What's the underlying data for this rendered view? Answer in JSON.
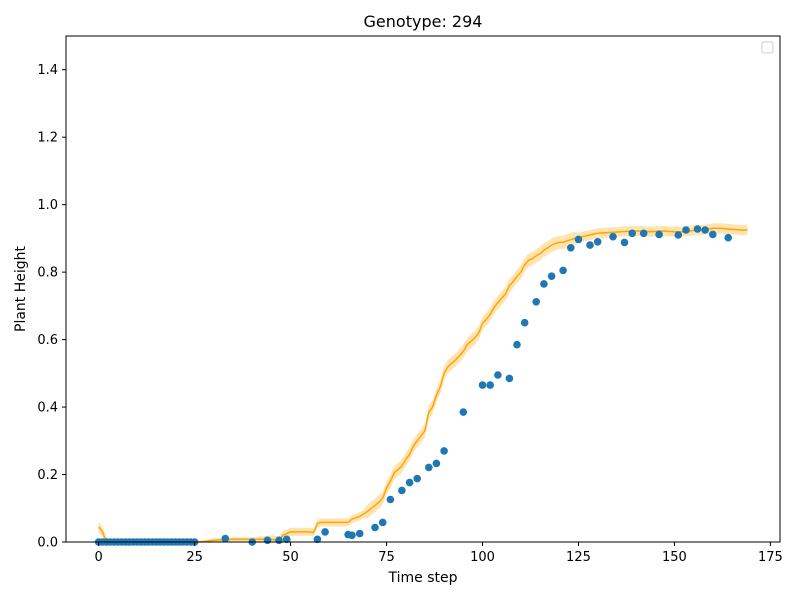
{
  "chart_data": {
    "type": "scatter",
    "title": "Genotype: 294",
    "xlabel": "Time step",
    "ylabel": "Plant Height",
    "xlim": [
      -8.5,
      177.5
    ],
    "ylim": [
      0,
      1.5
    ],
    "xticks": [
      0,
      25,
      50,
      75,
      100,
      125,
      150,
      175
    ],
    "xtick_labels": [
      "0",
      "25",
      "50",
      "75",
      "100",
      "125",
      "150",
      "175"
    ],
    "yticks": [
      0.0,
      0.2,
      0.4,
      0.6,
      0.8,
      1.0,
      1.2,
      1.4
    ],
    "ytick_labels": [
      "0.0",
      "0.2",
      "0.4",
      "0.6",
      "0.8",
      "1.0",
      "1.2",
      "1.4"
    ],
    "grid": false,
    "legend": {
      "placement": "top-right",
      "entries": []
    },
    "colors": {
      "points": "#1f77b4",
      "line": "#ffa500",
      "band": "#ffa500"
    },
    "scatter": {
      "x": [
        0,
        1,
        2,
        3,
        4,
        5,
        6,
        7,
        8,
        9,
        10,
        11,
        12,
        13,
        14,
        15,
        16,
        17,
        18,
        19,
        20,
        21,
        22,
        23,
        24,
        25,
        33,
        40,
        44,
        47,
        49,
        57,
        59,
        65,
        66,
        68,
        72,
        74,
        76,
        79,
        81,
        83,
        86,
        88,
        90,
        95,
        100,
        102,
        104,
        107,
        109,
        111,
        114,
        116,
        118,
        121,
        123,
        125,
        128,
        130,
        134,
        137,
        139,
        142,
        146,
        151,
        153,
        156,
        158,
        160,
        164
      ],
      "y": [
        0.0,
        0.0,
        0.0,
        0.0,
        0.0,
        0.0,
        0.0,
        0.0,
        0.0,
        0.0,
        0.0,
        0.0,
        0.0,
        0.0,
        0.0,
        0.0,
        0.0,
        0.0,
        0.0,
        0.0,
        0.0,
        0.0,
        0.0,
        0.0,
        0.0,
        0.0,
        0.01,
        0.0,
        0.005,
        0.005,
        0.008,
        0.008,
        0.03,
        0.022,
        0.02,
        0.025,
        0.043,
        0.058,
        0.126,
        0.153,
        0.176,
        0.188,
        0.221,
        0.233,
        0.27,
        0.385,
        0.465,
        0.465,
        0.495,
        0.485,
        0.585,
        0.65,
        0.712,
        0.765,
        0.788,
        0.805,
        0.872,
        0.897,
        0.88,
        0.89,
        0.905,
        0.888,
        0.915,
        0.915,
        0.912,
        0.91,
        0.925,
        0.928,
        0.925,
        0.912,
        0.902
      ]
    },
    "mean_line": {
      "x": [
        0,
        1,
        2,
        3,
        5,
        10,
        15,
        20,
        24,
        25,
        26,
        27,
        30,
        35,
        40,
        45,
        46,
        47,
        48,
        50,
        52,
        55,
        56,
        57,
        58,
        60,
        63,
        65,
        66,
        67,
        68,
        69,
        70,
        71,
        72,
        73,
        74,
        75,
        76,
        77,
        78,
        79,
        80,
        81,
        82,
        83,
        84,
        85,
        86,
        87,
        88,
        89,
        90,
        91,
        92,
        93,
        94,
        95,
        96,
        97,
        98,
        99,
        100,
        101,
        102,
        103,
        104,
        105,
        106,
        107,
        108,
        109,
        110,
        111,
        112,
        113,
        114,
        115,
        116,
        117,
        118,
        119,
        120,
        121,
        122,
        123,
        124,
        125,
        126,
        127,
        128,
        129,
        130,
        132,
        134,
        136,
        138,
        140,
        142,
        144,
        146,
        148,
        150,
        152,
        154,
        156,
        158,
        160,
        162,
        164,
        166,
        168,
        169
      ],
      "y": [
        0.045,
        0.03,
        0.0,
        0.0,
        0.0,
        0.0,
        0.0,
        0.0,
        0.0,
        0.0,
        0.0,
        0.0,
        0.005,
        0.008,
        0.008,
        0.008,
        0.006,
        0.005,
        0.02,
        0.03,
        0.03,
        0.03,
        0.028,
        0.055,
        0.058,
        0.058,
        0.058,
        0.058,
        0.068,
        0.072,
        0.076,
        0.083,
        0.09,
        0.1,
        0.108,
        0.118,
        0.13,
        0.16,
        0.18,
        0.205,
        0.215,
        0.225,
        0.245,
        0.26,
        0.285,
        0.3,
        0.315,
        0.33,
        0.385,
        0.4,
        0.435,
        0.46,
        0.5,
        0.52,
        0.53,
        0.54,
        0.552,
        0.565,
        0.585,
        0.595,
        0.605,
        0.62,
        0.648,
        0.66,
        0.675,
        0.695,
        0.71,
        0.723,
        0.735,
        0.76,
        0.772,
        0.788,
        0.8,
        0.822,
        0.835,
        0.84,
        0.848,
        0.855,
        0.865,
        0.872,
        0.88,
        0.885,
        0.888,
        0.888,
        0.893,
        0.896,
        0.9,
        0.902,
        0.905,
        0.908,
        0.91,
        0.913,
        0.915,
        0.917,
        0.918,
        0.92,
        0.921,
        0.922,
        0.921,
        0.92,
        0.922,
        0.921,
        0.92,
        0.92,
        0.922,
        0.925,
        0.926,
        0.93,
        0.93,
        0.928,
        0.926,
        0.924,
        0.926
      ]
    }
  }
}
